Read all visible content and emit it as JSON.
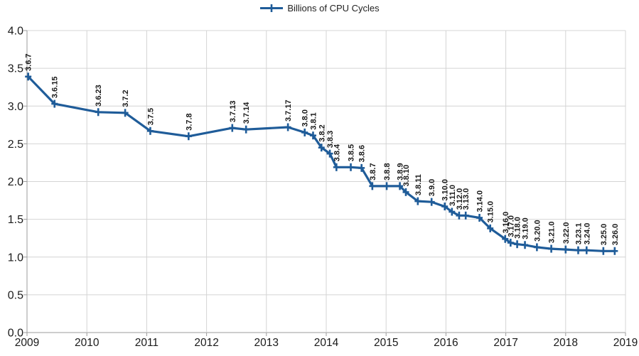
{
  "chart_data": {
    "type": "line",
    "title": "",
    "legend": {
      "label": "Billions of CPU Cycles",
      "position": "top-center"
    },
    "x_axis": {
      "min": 2009,
      "max": 2019,
      "tick_step": 1,
      "tick_labels": [
        "2009",
        "2010",
        "2011",
        "2012",
        "2013",
        "2014",
        "2015",
        "2016",
        "2017",
        "2018",
        "2019"
      ]
    },
    "y_axis": {
      "min": 0.0,
      "max": 4.0,
      "tick_step": 0.5,
      "tick_labels": [
        "0.0",
        "0.5",
        "1.0",
        "1.5",
        "2.0",
        "2.5",
        "3.0",
        "3.5",
        "4.0"
      ]
    },
    "grid": true,
    "colors": {
      "series_line": "#1F5C99",
      "gridline": "#d4d4d4",
      "axis_line": "#9b9b9b",
      "axis_text": "#1a1a1a",
      "data_label_text": "#1a1a1a",
      "legend_text": "#222222"
    },
    "series": [
      {
        "name": "Billions of CPU Cycles",
        "marker": "plus",
        "points": [
          {
            "label": "3.6.7",
            "x": 2009.02,
            "y": 3.39
          },
          {
            "label": "3.6.15",
            "x": 2009.46,
            "y": 3.03
          },
          {
            "label": "3.6.23",
            "x": 2010.19,
            "y": 2.92
          },
          {
            "label": "3.7.2",
            "x": 2010.64,
            "y": 2.91
          },
          {
            "label": "3.7.5",
            "x": 2011.06,
            "y": 2.67
          },
          {
            "label": "3.7.8",
            "x": 2011.7,
            "y": 2.6
          },
          {
            "label": "3.7.13",
            "x": 2012.43,
            "y": 2.71
          },
          {
            "label": "3.7.14",
            "x": 2012.66,
            "y": 2.69
          },
          {
            "label": "3.7.17",
            "x": 2013.36,
            "y": 2.72
          },
          {
            "label": "3.8.0",
            "x": 2013.64,
            "y": 2.65
          },
          {
            "label": "3.8.1",
            "x": 2013.78,
            "y": 2.61
          },
          {
            "label": "3.8.2",
            "x": 2013.92,
            "y": 2.45
          },
          {
            "label": "3.8.3",
            "x": 2014.06,
            "y": 2.37
          },
          {
            "label": "3.8.4",
            "x": 2014.17,
            "y": 2.19
          },
          {
            "label": "3.8.5",
            "x": 2014.41,
            "y": 2.19
          },
          {
            "label": "3.8.6",
            "x": 2014.59,
            "y": 2.18
          },
          {
            "label": "3.8.7",
            "x": 2014.77,
            "y": 1.94
          },
          {
            "label": "3.8.8",
            "x": 2015.01,
            "y": 1.94
          },
          {
            "label": "3.8.9",
            "x": 2015.23,
            "y": 1.94
          },
          {
            "label": "3.8.10",
            "x": 2015.33,
            "y": 1.86
          },
          {
            "label": "3.8.11",
            "x": 2015.53,
            "y": 1.74
          },
          {
            "label": "3.9.0",
            "x": 2015.76,
            "y": 1.73
          },
          {
            "label": "3.10.0",
            "x": 2015.98,
            "y": 1.67
          },
          {
            "label": "3.11.0",
            "x": 2016.1,
            "y": 1.6
          },
          {
            "label": "3.12.0",
            "x": 2016.22,
            "y": 1.55
          },
          {
            "label": "3.13.0",
            "x": 2016.33,
            "y": 1.55
          },
          {
            "label": "3.14.0",
            "x": 2016.56,
            "y": 1.52
          },
          {
            "label": "3.15.0",
            "x": 2016.74,
            "y": 1.38
          },
          {
            "label": "3.16.0",
            "x": 2016.99,
            "y": 1.24
          },
          {
            "label": "3.17.0",
            "x": 2017.08,
            "y": 1.19
          },
          {
            "label": "3.18.0",
            "x": 2017.19,
            "y": 1.17
          },
          {
            "label": "3.19.0",
            "x": 2017.32,
            "y": 1.16
          },
          {
            "label": "3.20.0",
            "x": 2017.52,
            "y": 1.13
          },
          {
            "label": "3.21.0",
            "x": 2017.76,
            "y": 1.11
          },
          {
            "label": "3.22.0",
            "x": 2018.0,
            "y": 1.1
          },
          {
            "label": "3.23.1",
            "x": 2018.21,
            "y": 1.09
          },
          {
            "label": "3.24.0",
            "x": 2018.35,
            "y": 1.09
          },
          {
            "label": "3.25.0",
            "x": 2018.63,
            "y": 1.08
          },
          {
            "label": "3.26.0",
            "x": 2018.82,
            "y": 1.08
          }
        ]
      }
    ]
  }
}
